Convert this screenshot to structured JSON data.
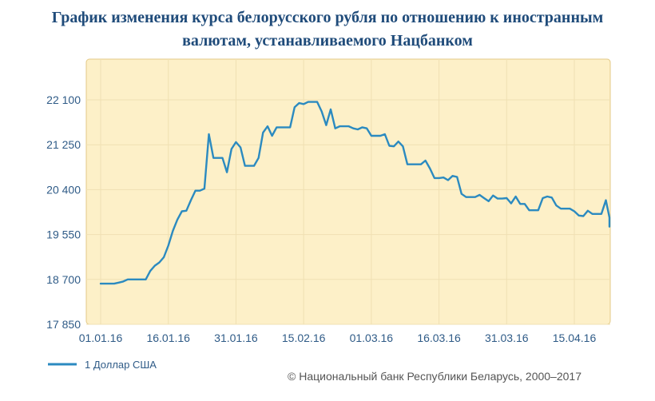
{
  "page": {
    "title_line1": "График изменения курса белорусского рубля по отношению к иностранным",
    "title_line2": "валютам, устанавливаемого Нацбанком",
    "copyright": "© Национальный банк Республики Беларусь, 2000–2017"
  },
  "colors": {
    "plot_background": "#fdf0c8",
    "plot_border": "#e3c987",
    "grid": "#f0e0b3",
    "line": "#2b8ac0",
    "title": "#1f4b7a",
    "ticks": "#2f5b87"
  },
  "chart_data": {
    "type": "line",
    "title": "График изменения курса белорусского рубля по отношению к иностранным валютам, устанавливаемого Нацбанком",
    "xlabel": "",
    "ylabel": "",
    "ylim": [
      17850,
      22950
    ],
    "yticks": [
      17850,
      18700,
      19550,
      20400,
      21250,
      22100
    ],
    "ytick_labels": [
      "17 850",
      "18 700",
      "19 550",
      "20 400",
      "21 250",
      "22 100"
    ],
    "xlim": [
      "2016-01-01",
      "2016-04-22"
    ],
    "xticks": [
      "2016-01-01",
      "2016-01-16",
      "2016-01-31",
      "2016-02-15",
      "2016-03-01",
      "2016-03-16",
      "2016-03-31",
      "2016-04-15"
    ],
    "xtick_labels": [
      "01.01.16",
      "16.01.16",
      "31.01.16",
      "15.02.16",
      "01.03.16",
      "16.03.16",
      "31.03.16",
      "15.04.16"
    ],
    "grid": true,
    "legend_position": "bottom-left",
    "series": [
      {
        "name": "1 Доллар США",
        "points": [
          [
            "2016-01-01",
            18620
          ],
          [
            "2016-01-04",
            18620
          ],
          [
            "2016-01-05",
            18640
          ],
          [
            "2016-01-06",
            18660
          ],
          [
            "2016-01-07",
            18700
          ],
          [
            "2016-01-08",
            18700
          ],
          [
            "2016-01-11",
            18700
          ],
          [
            "2016-01-12",
            18860
          ],
          [
            "2016-01-13",
            18960
          ],
          [
            "2016-01-14",
            19020
          ],
          [
            "2016-01-15",
            19120
          ],
          [
            "2016-01-16",
            19340
          ],
          [
            "2016-01-17",
            19620
          ],
          [
            "2016-01-18",
            19830
          ],
          [
            "2016-01-19",
            19990
          ],
          [
            "2016-01-20",
            20000
          ],
          [
            "2016-01-21",
            20200
          ],
          [
            "2016-01-22",
            20380
          ],
          [
            "2016-01-23",
            20380
          ],
          [
            "2016-01-24",
            20420
          ],
          [
            "2016-01-25",
            21450
          ],
          [
            "2016-01-26",
            21000
          ],
          [
            "2016-01-27",
            21000
          ],
          [
            "2016-01-28",
            21000
          ],
          [
            "2016-01-29",
            20730
          ],
          [
            "2016-01-30",
            21170
          ],
          [
            "2016-01-31",
            21300
          ],
          [
            "2016-02-01",
            21200
          ],
          [
            "2016-02-02",
            20850
          ],
          [
            "2016-02-03",
            20850
          ],
          [
            "2016-02-04",
            20850
          ],
          [
            "2016-02-05",
            21000
          ],
          [
            "2016-02-06",
            21480
          ],
          [
            "2016-02-07",
            21600
          ],
          [
            "2016-02-08",
            21420
          ],
          [
            "2016-02-09",
            21580
          ],
          [
            "2016-02-10",
            21580
          ],
          [
            "2016-02-11",
            21580
          ],
          [
            "2016-02-12",
            21580
          ],
          [
            "2016-02-13",
            21960
          ],
          [
            "2016-02-14",
            22040
          ],
          [
            "2016-02-15",
            22020
          ],
          [
            "2016-02-16",
            22060
          ],
          [
            "2016-02-17",
            22060
          ],
          [
            "2016-02-18",
            22060
          ],
          [
            "2016-02-19",
            21880
          ],
          [
            "2016-02-20",
            21620
          ],
          [
            "2016-02-21",
            21920
          ],
          [
            "2016-02-22",
            21560
          ],
          [
            "2016-02-23",
            21600
          ],
          [
            "2016-02-24",
            21600
          ],
          [
            "2016-02-25",
            21600
          ],
          [
            "2016-02-26",
            21560
          ],
          [
            "2016-02-27",
            21540
          ],
          [
            "2016-02-28",
            21580
          ],
          [
            "2016-02-29",
            21560
          ],
          [
            "2016-03-01",
            21420
          ],
          [
            "2016-03-02",
            21420
          ],
          [
            "2016-03-03",
            21420
          ],
          [
            "2016-03-04",
            21450
          ],
          [
            "2016-03-05",
            21230
          ],
          [
            "2016-03-06",
            21220
          ],
          [
            "2016-03-07",
            21310
          ],
          [
            "2016-03-08",
            21220
          ],
          [
            "2016-03-09",
            20880
          ],
          [
            "2016-03-10",
            20880
          ],
          [
            "2016-03-11",
            20880
          ],
          [
            "2016-03-12",
            20880
          ],
          [
            "2016-03-13",
            20950
          ],
          [
            "2016-03-14",
            20800
          ],
          [
            "2016-03-15",
            20620
          ],
          [
            "2016-03-16",
            20620
          ],
          [
            "2016-03-17",
            20630
          ],
          [
            "2016-03-18",
            20580
          ],
          [
            "2016-03-19",
            20660
          ],
          [
            "2016-03-20",
            20640
          ],
          [
            "2016-03-21",
            20320
          ],
          [
            "2016-03-22",
            20260
          ],
          [
            "2016-03-23",
            20260
          ],
          [
            "2016-03-24",
            20260
          ],
          [
            "2016-03-25",
            20300
          ],
          [
            "2016-03-26",
            20240
          ],
          [
            "2016-03-27",
            20180
          ],
          [
            "2016-03-28",
            20290
          ],
          [
            "2016-03-29",
            20230
          ],
          [
            "2016-03-30",
            20230
          ],
          [
            "2016-03-31",
            20240
          ],
          [
            "2016-04-01",
            20140
          ],
          [
            "2016-04-02",
            20270
          ],
          [
            "2016-04-03",
            20130
          ],
          [
            "2016-04-04",
            20130
          ],
          [
            "2016-04-05",
            20010
          ],
          [
            "2016-04-06",
            20010
          ],
          [
            "2016-04-07",
            20010
          ],
          [
            "2016-04-08",
            20240
          ],
          [
            "2016-04-09",
            20270
          ],
          [
            "2016-04-10",
            20250
          ],
          [
            "2016-04-11",
            20100
          ],
          [
            "2016-04-12",
            20040
          ],
          [
            "2016-04-13",
            20040
          ],
          [
            "2016-04-14",
            20040
          ],
          [
            "2016-04-15",
            19990
          ],
          [
            "2016-04-16",
            19910
          ],
          [
            "2016-04-17",
            19900
          ],
          [
            "2016-04-18",
            20000
          ],
          [
            "2016-04-19",
            19940
          ],
          [
            "2016-04-20",
            19940
          ],
          [
            "2016-04-21",
            19940
          ],
          [
            "2016-04-22",
            20200
          ],
          [
            "2016-04-23",
            19870
          ],
          [
            "2016-04-24",
            19860
          ],
          [
            "2016-04-25",
            19700
          ]
        ]
      }
    ]
  }
}
